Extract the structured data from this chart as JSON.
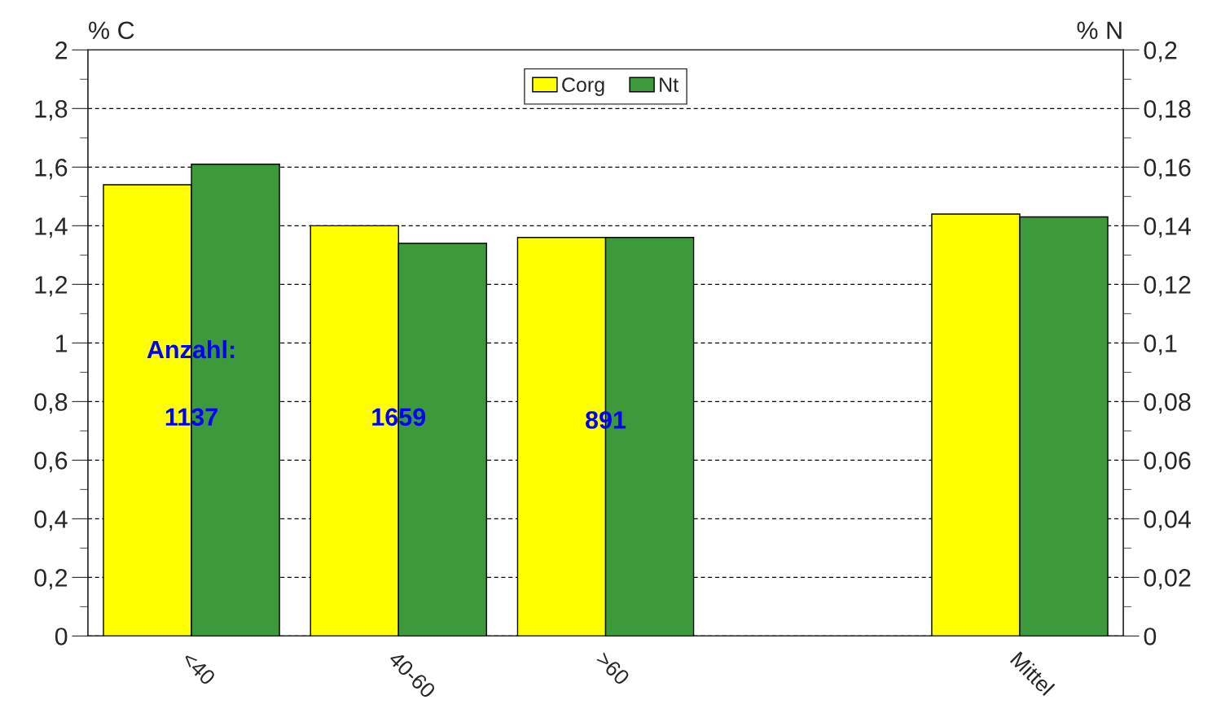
{
  "chart_data": {
    "type": "bar",
    "categories": [
      "<40",
      "40-60",
      ">60",
      null,
      "Mittel"
    ],
    "ylabel": "% C",
    "y2label": "% N",
    "series": [
      {
        "name": "Corg",
        "color": "#ffff00",
        "values": [
          1.54,
          1.4,
          1.36,
          null,
          1.44
        ]
      },
      {
        "name": "Nt",
        "color": "#3c9a3c",
        "axis": "y2",
        "values": [
          0.161,
          0.134,
          0.136,
          null,
          0.143
        ]
      }
    ],
    "ylim": [
      0,
      2
    ],
    "yticks": [
      0,
      {
        "value": 0.2,
        "label": "0,2"
      },
      {
        "value": 0.4,
        "label": "0,4"
      },
      {
        "value": 0.6,
        "label": "0,6"
      },
      {
        "value": 0.8,
        "label": "0,8"
      },
      1,
      {
        "value": 1.2,
        "label": "1,2"
      },
      {
        "value": 1.4,
        "label": "1,4"
      },
      {
        "value": 1.6,
        "label": "1,6"
      },
      {
        "value": 1.8,
        "label": "1,8"
      },
      2
    ],
    "y2lim": [
      0,
      0.2
    ],
    "y2ticks": [
      0,
      {
        "value": 0.02,
        "label": "0,02"
      },
      {
        "value": 0.04,
        "label": "0,04"
      },
      {
        "value": 0.06,
        "label": "0,06"
      },
      {
        "value": 0.08,
        "label": "0,08"
      },
      {
        "value": 0.1,
        "label": "0,1"
      },
      {
        "value": 0.12,
        "label": "0,12"
      },
      {
        "value": 0.14,
        "label": "0,14"
      },
      {
        "value": 0.16,
        "label": "0,16"
      },
      {
        "value": 0.18,
        "label": "0,18"
      },
      {
        "value": 0.2,
        "label": "0,2"
      }
    ],
    "annotations": [
      {
        "text": "Anzahl:",
        "x": "<40",
        "y": 0.97
      },
      {
        "text": "1137",
        "x": "<40",
        "y": 0.74
      },
      {
        "text": "1659",
        "x": "40-60",
        "y": 0.74
      },
      {
        "text": "891",
        "x": ">60",
        "y": 0.73
      }
    ],
    "grid": "y",
    "legend": "top"
  }
}
